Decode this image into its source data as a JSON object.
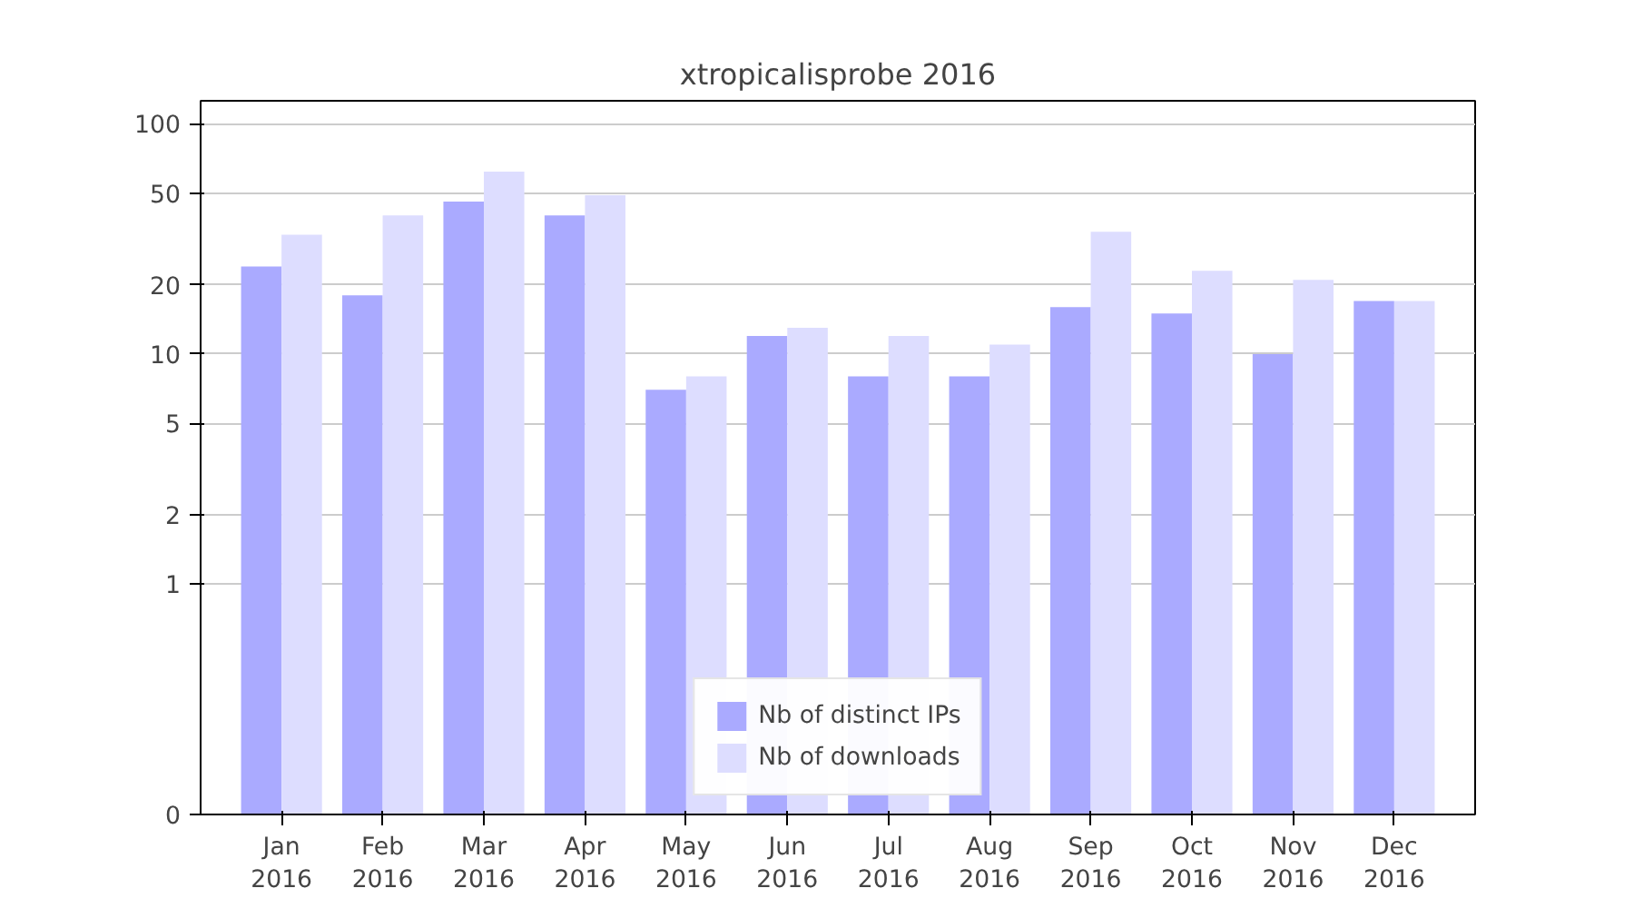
{
  "chart_data": {
    "type": "bar",
    "title": "xtropicalisprobe 2016",
    "categories": [
      "Jan\n2016",
      "Feb\n2016",
      "Mar\n2016",
      "Apr\n2016",
      "May\n2016",
      "Jun\n2016",
      "Jul\n2016",
      "Aug\n2016",
      "Sep\n2016",
      "Oct\n2016",
      "Nov\n2016",
      "Dec\n2016"
    ],
    "series": [
      {
        "name": "Nb of distinct IPs",
        "color": "#aaaaff",
        "values": [
          24,
          18,
          46,
          40,
          7,
          12,
          8,
          8,
          16,
          15,
          10,
          17
        ]
      },
      {
        "name": "Nb of downloads",
        "color": "#ddddff",
        "values": [
          33,
          40,
          62,
          49,
          8,
          13,
          12,
          11,
          34,
          23,
          21,
          17
        ]
      }
    ],
    "log": "y",
    "ylim": [
      0,
      126
    ],
    "yticks": [
      0,
      1,
      2,
      5,
      10,
      20,
      50,
      100
    ],
    "grid": "y",
    "legend": "bottom"
  }
}
